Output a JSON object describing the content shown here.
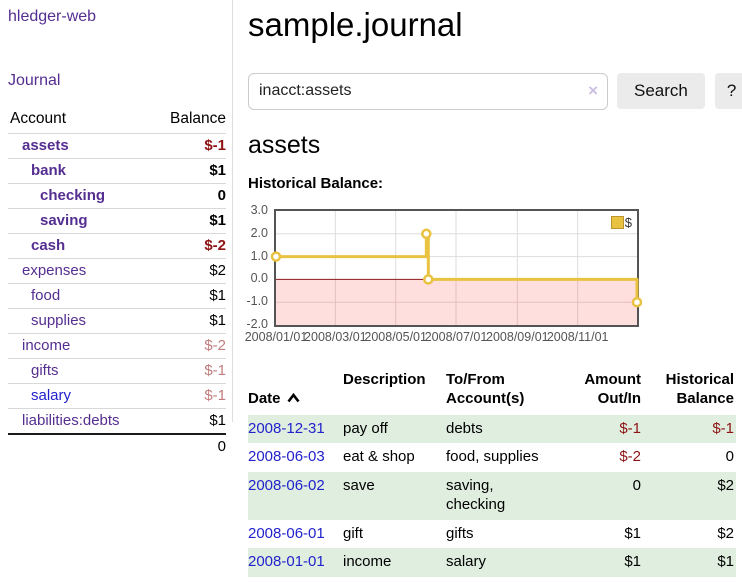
{
  "app_title": "hledger-web",
  "sidebar": {
    "journal_link": "Journal",
    "account_header": "Account",
    "balance_header": "Balance",
    "rows": [
      {
        "name": "assets",
        "balance": "$-1"
      },
      {
        "name": "bank",
        "balance": "$1"
      },
      {
        "name": "checking",
        "balance": "0"
      },
      {
        "name": "saving",
        "balance": "$1"
      },
      {
        "name": "cash",
        "balance": "$-2"
      },
      {
        "name": "expenses",
        "balance": "$2"
      },
      {
        "name": "food",
        "balance": "$1"
      },
      {
        "name": "supplies",
        "balance": "$1"
      },
      {
        "name": "income",
        "balance": "$-2"
      },
      {
        "name": "gifts",
        "balance": "$-1"
      },
      {
        "name": "salary",
        "balance": "$-1"
      },
      {
        "name": "liabilities:debts",
        "balance": "$1"
      }
    ],
    "total": "0"
  },
  "main": {
    "title": "sample.journal",
    "search": {
      "value": "inacct:assets",
      "clear_icon": "×",
      "search_button": "Search",
      "help_button": "?"
    },
    "account_heading": "assets",
    "chart_title": "Historical Balance:"
  },
  "chart_data": {
    "type": "line",
    "title": "Historical Balance",
    "step": true,
    "xlim_days": [
      0,
      365
    ],
    "ylim": [
      -2,
      3
    ],
    "yticks": [
      {
        "label": "3.0",
        "value": 3
      },
      {
        "label": "2.0",
        "value": 2
      },
      {
        "label": "1.0",
        "value": 1
      },
      {
        "label": "0.0",
        "value": 0
      },
      {
        "label": "-1.0",
        "value": -1
      },
      {
        "label": "-2.0",
        "value": -2
      }
    ],
    "xticks": [
      {
        "label": "2008/01/01",
        "day": 0
      },
      {
        "label": "2008/03/01",
        "day": 60
      },
      {
        "label": "2008/05/01",
        "day": 121
      },
      {
        "label": "2008/07/01",
        "day": 182
      },
      {
        "label": "2008/09/01",
        "day": 244
      },
      {
        "label": "2008/11/01",
        "day": 305
      }
    ],
    "series": [
      {
        "name": "$",
        "color": "#E8C240",
        "points": [
          {
            "date": "2008-01-01",
            "day": 0,
            "value": 1
          },
          {
            "date": "2008-06-01",
            "day": 152,
            "value": 2
          },
          {
            "date": "2008-06-03",
            "day": 154,
            "value": 0
          },
          {
            "date": "2008-12-31",
            "day": 365,
            "value": -1
          }
        ]
      }
    ],
    "legend": {
      "label": "$",
      "position": "top-right"
    },
    "grid": true,
    "colors": {
      "grid": "#dddddd",
      "border": "#545454",
      "zero_line": "#8B1A1A",
      "negative_region": "rgba(255,0,0,0.13)",
      "point_fill": "#ffffff"
    }
  },
  "register": {
    "headers": {
      "date": "Date",
      "description": "Description",
      "accounts": "To/From\nAccount(s)",
      "amount": "Amount\nOut/In",
      "balance": "Historical\nBalance"
    },
    "rows": [
      {
        "date": "2008-12-31",
        "description": "pay off",
        "accounts": "debts",
        "amount": "$-1",
        "balance": "$-1"
      },
      {
        "date": "2008-06-03",
        "description": "eat & shop",
        "accounts": "food, supplies",
        "amount": "$-2",
        "balance": "0"
      },
      {
        "date": "2008-06-02",
        "description": "save",
        "accounts": "saving,\nchecking",
        "amount": "0",
        "balance": "$2"
      },
      {
        "date": "2008-06-01",
        "description": "gift",
        "accounts": "gifts",
        "amount": "$1",
        "balance": "$2"
      },
      {
        "date": "2008-01-01",
        "description": "income",
        "accounts": "salary",
        "amount": "$1",
        "balance": "$1"
      }
    ]
  }
}
